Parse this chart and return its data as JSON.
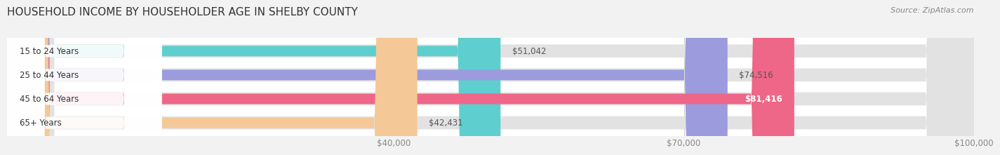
{
  "title": "HOUSEHOLD INCOME BY HOUSEHOLDER AGE IN SHELBY COUNTY",
  "source": "Source: ZipAtlas.com",
  "categories": [
    "15 to 24 Years",
    "25 to 44 Years",
    "45 to 64 Years",
    "65+ Years"
  ],
  "values": [
    51042,
    74516,
    81416,
    42431
  ],
  "bar_colors": [
    "#5ECECE",
    "#9B9BDD",
    "#EE6688",
    "#F5C898"
  ],
  "bar_labels": [
    "$51,042",
    "$74,516",
    "$81,416",
    "$42,431"
  ],
  "label_inside": [
    false,
    false,
    true,
    false
  ],
  "xmin": 0,
  "xmax": 100000,
  "xticks": [
    40000,
    70000,
    100000
  ],
  "xtick_labels": [
    "$40,000",
    "$70,000",
    "$100,000"
  ],
  "bg_color": "#f2f2f2",
  "bar_bg_color": "#e2e2e2",
  "chart_bg": "#ffffff",
  "title_fontsize": 11,
  "source_fontsize": 8,
  "bar_height": 0.55,
  "figsize": [
    14.06,
    2.33
  ]
}
